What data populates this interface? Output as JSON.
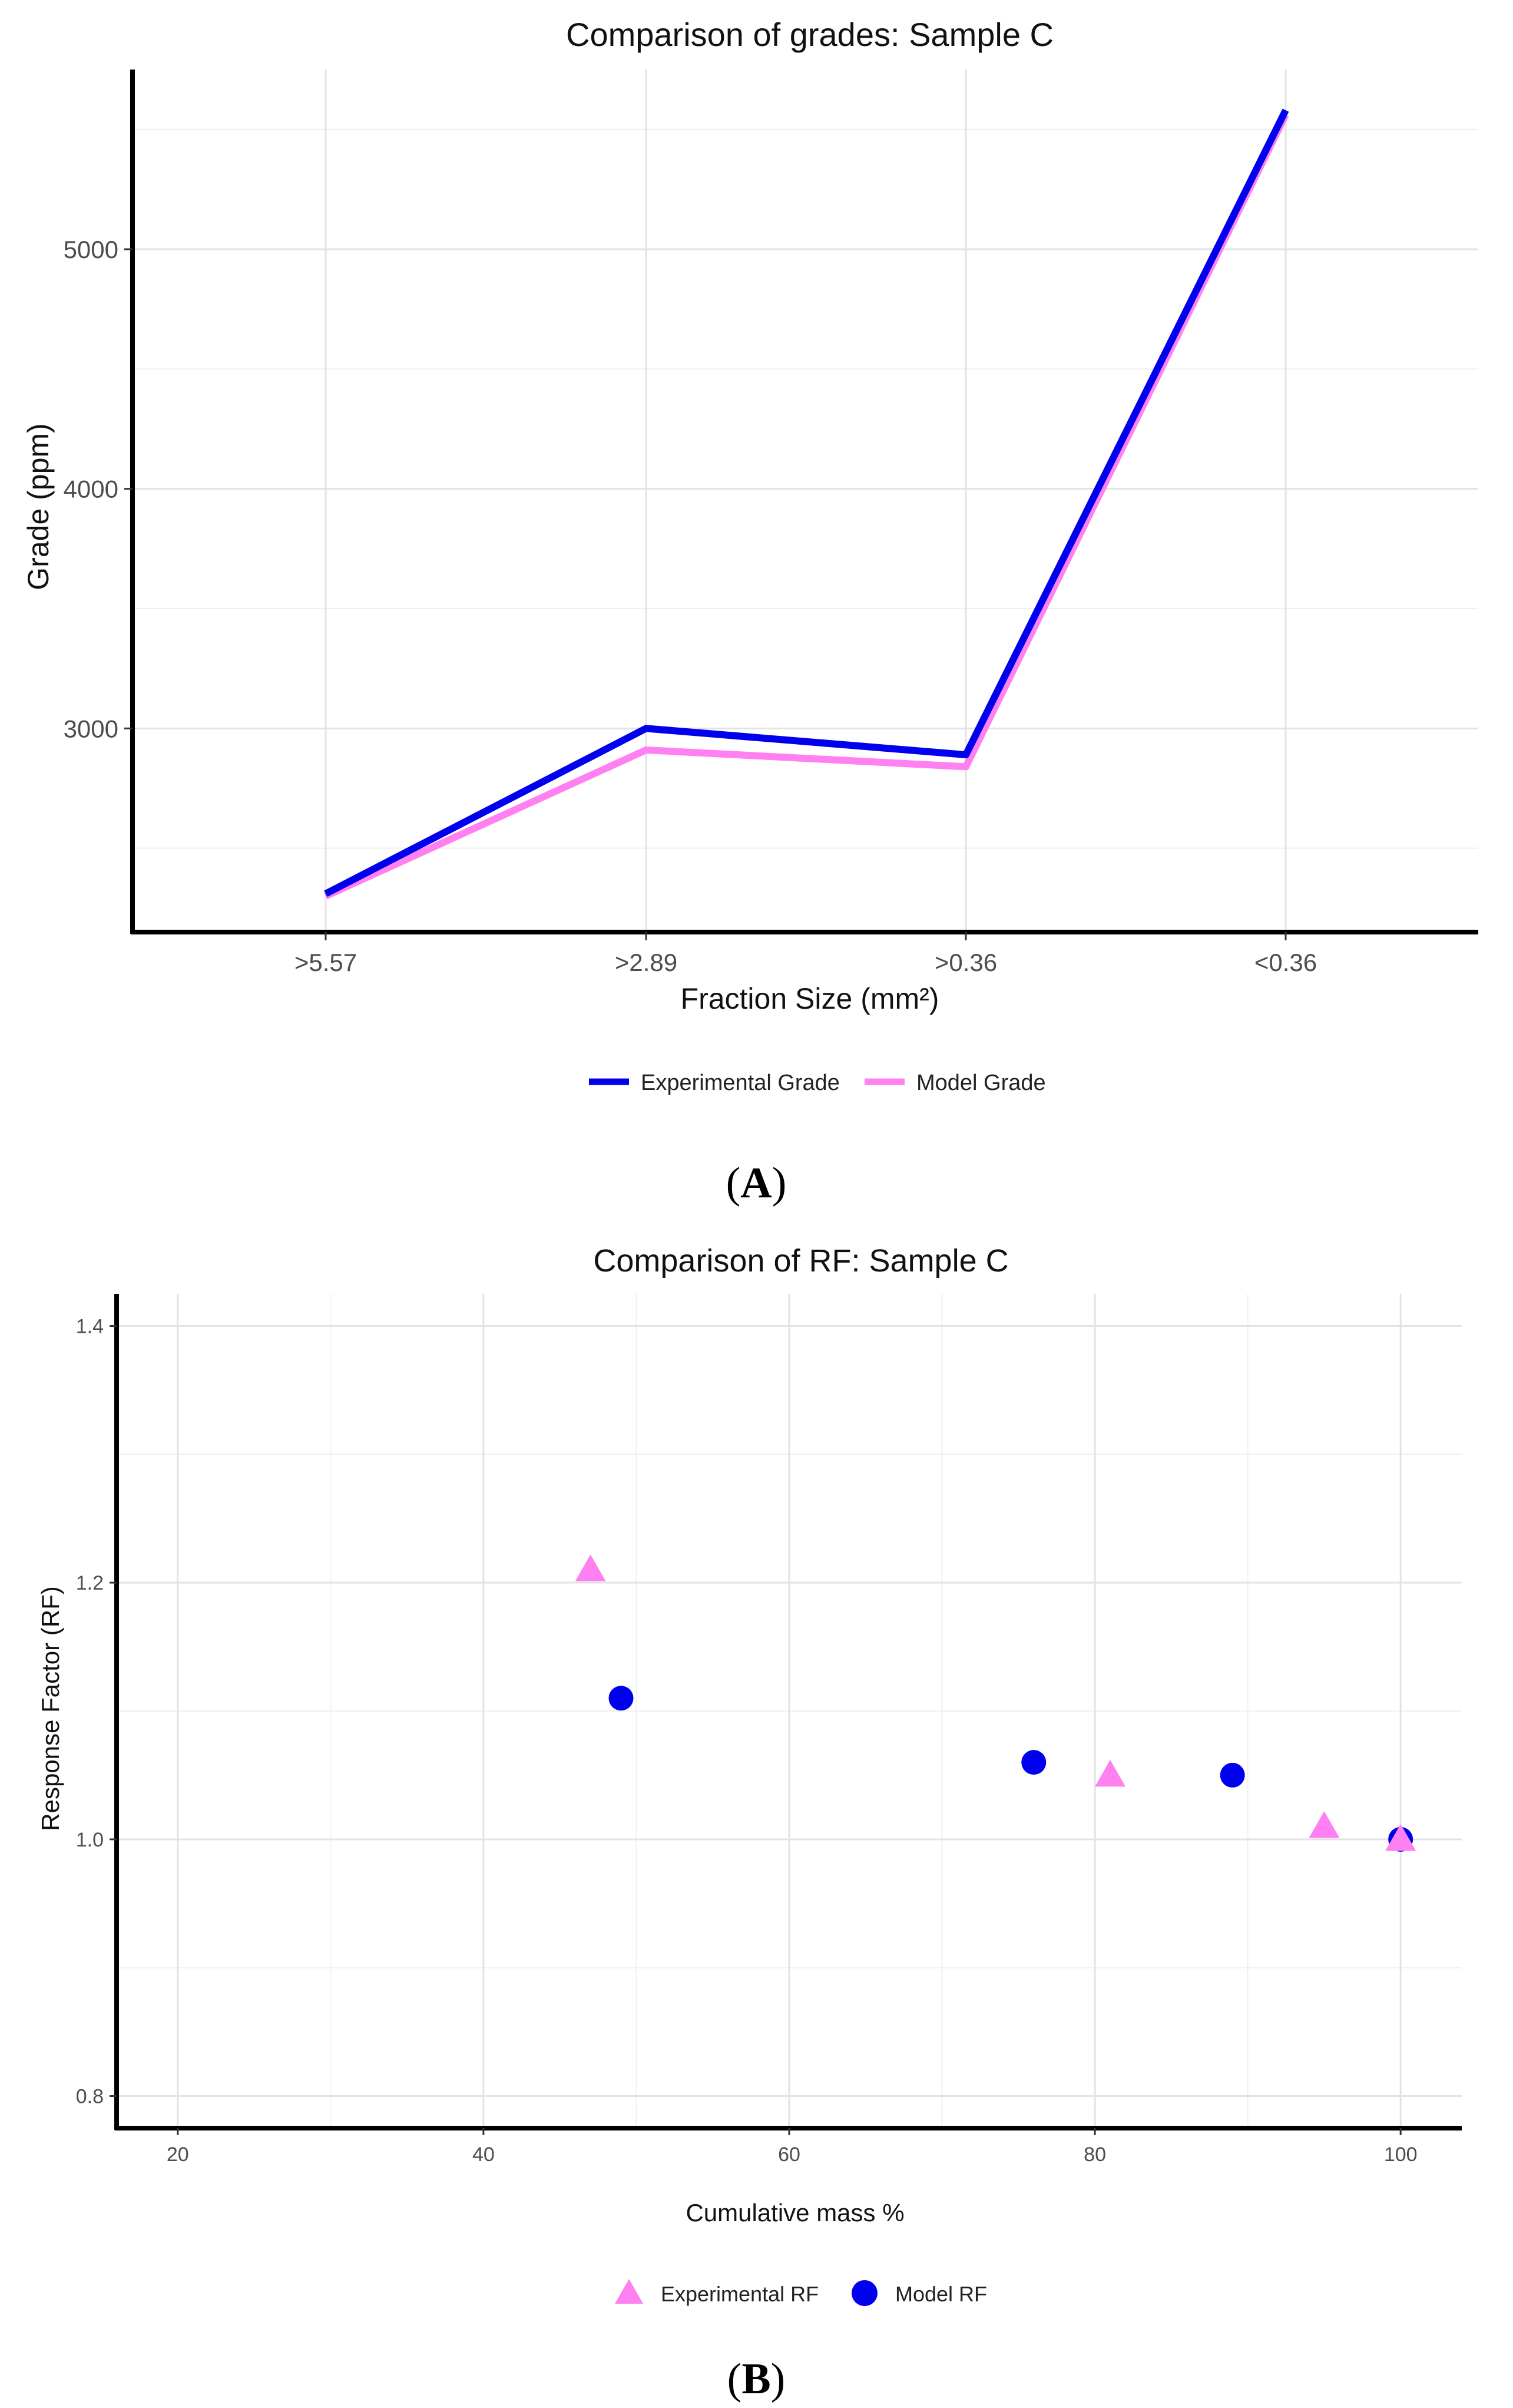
{
  "chart_data": [
    {
      "panel_label": "A",
      "type": "line",
      "title": "Comparison of grades: Sample C",
      "xlabel": "Fraction Size (mm²)",
      "ylabel": "Grade (ppm)",
      "categories": [
        ">5.57",
        ">2.89",
        ">0.36",
        "<0.36"
      ],
      "ylim": [
        2150,
        5750
      ],
      "yticks": [
        3000,
        4000,
        5000
      ],
      "ygrid_minor": [
        2500,
        3500,
        4500,
        5500
      ],
      "grid": true,
      "legend_position": "bottom",
      "series": [
        {
          "name": "Experimental Grade",
          "values": [
            2310,
            3000,
            2890,
            5580
          ],
          "color": "#0000ee"
        },
        {
          "name": "Model Grade",
          "values": [
            2300,
            2910,
            2840,
            5560
          ],
          "color": "#ff80f0"
        }
      ]
    },
    {
      "panel_label": "B",
      "type": "scatter",
      "title": "Comparison of RF: Sample C",
      "xlabel": "Cumulative mass %",
      "ylabel": "Response Factor (RF)",
      "xlim": [
        16,
        104
      ],
      "ylim": [
        0.775,
        1.425
      ],
      "xticks": [
        20,
        40,
        60,
        80,
        100
      ],
      "xgrid_minor": [
        30,
        50,
        70,
        90
      ],
      "yticks": [
        0.8,
        1.0,
        1.2,
        1.4
      ],
      "ygrid_minor": [
        0.9,
        1.1,
        1.3
      ],
      "grid": true,
      "legend_position": "bottom",
      "series": [
        {
          "name": "Experimental RF",
          "marker": "triangle",
          "color": "#ff80f0",
          "x": [
            47,
            81,
            95,
            100
          ],
          "y": [
            1.21,
            1.05,
            1.01,
            1.0
          ]
        },
        {
          "name": "Model RF",
          "marker": "circle",
          "color": "#0000ee",
          "x": [
            49,
            76,
            89,
            100
          ],
          "y": [
            1.11,
            1.06,
            1.05,
            1.0
          ]
        }
      ]
    }
  ]
}
